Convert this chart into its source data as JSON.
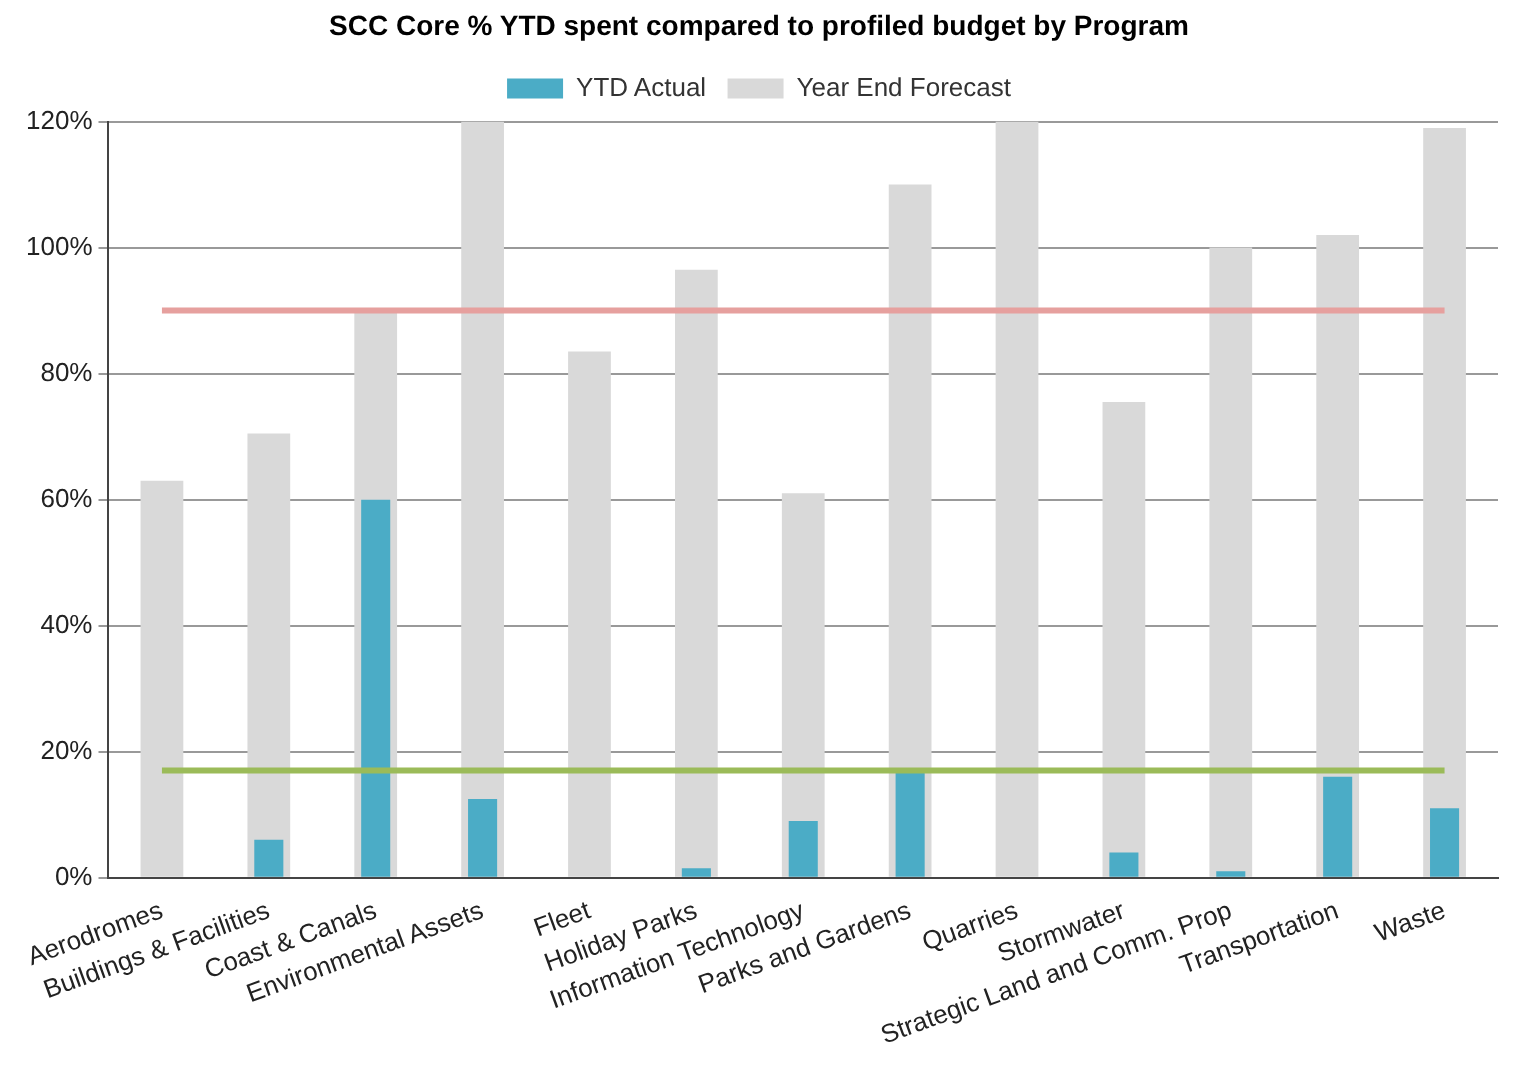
{
  "chart_data": {
    "type": "bar",
    "title": "SCC Core % YTD spent compared to profiled budget by Program",
    "categories": [
      "Aerodromes",
      "Buildings & Facilities",
      "Coast & Canals",
      "Environmental Assets",
      "Fleet",
      "Holiday Parks",
      "Information Technology",
      "Parks and Gardens",
      "Quarries",
      "Stormwater",
      "Strategic Land and Comm. Prop",
      "Transportation",
      "Waste"
    ],
    "series": [
      {
        "name": "YTD Actual",
        "color": "#4bacc6",
        "values": [
          0,
          6,
          60,
          12.5,
          0,
          1.5,
          9,
          17,
          0,
          4,
          1,
          16,
          11
        ]
      },
      {
        "name": "Year End Forecast",
        "color": "#d9d9d9",
        "values": [
          63,
          70.5,
          90,
          120,
          83.5,
          96.5,
          61,
          110,
          120,
          75.5,
          100,
          102,
          119
        ]
      }
    ],
    "ylim": [
      0,
      120
    ],
    "yticks": [
      {
        "value": 0,
        "label": "0%"
      },
      {
        "value": 20,
        "label": "20%"
      },
      {
        "value": 40,
        "label": "40%"
      },
      {
        "value": 60,
        "label": "60%"
      },
      {
        "value": 80,
        "label": "80%"
      },
      {
        "value": 100,
        "label": "100%"
      },
      {
        "value": 120,
        "label": "120%"
      }
    ],
    "ref_lines": [
      {
        "axis": "y",
        "value": 90,
        "color": "#e6a09e"
      },
      {
        "axis": "y",
        "value": 17,
        "color": "#9bbb59"
      }
    ],
    "grid": "y",
    "legend": "top"
  }
}
